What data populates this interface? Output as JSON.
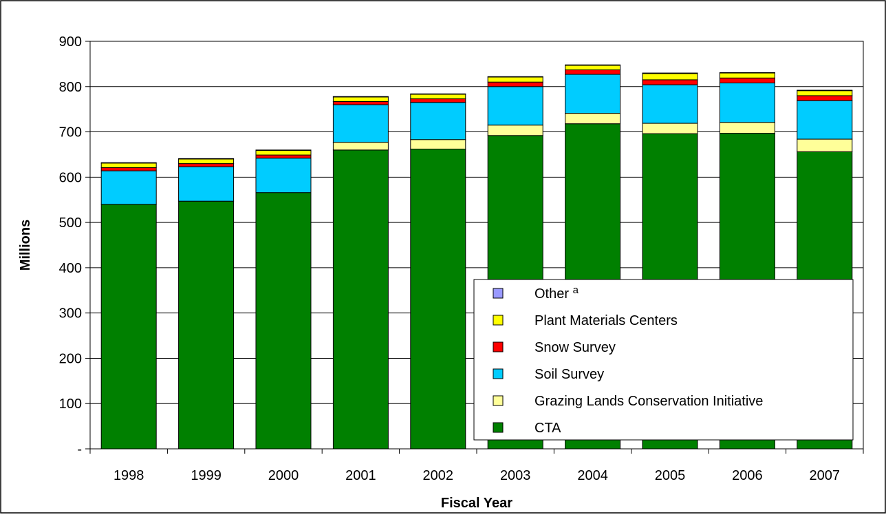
{
  "chart_data": {
    "type": "bar",
    "stacked": true,
    "title": "",
    "xlabel": "Fiscal Year",
    "ylabel": "Millions",
    "ylim": [
      0,
      900
    ],
    "yticks": [
      0,
      100,
      200,
      300,
      400,
      500,
      600,
      700,
      800,
      900
    ],
    "ytick_labels": [
      "-",
      "100",
      "200",
      "300",
      "400",
      "500",
      "600",
      "700",
      "800",
      "900"
    ],
    "grid": "horizontal",
    "legend_position": "bottom-right",
    "categories": [
      "1998",
      "1999",
      "2000",
      "2001",
      "2002",
      "2003",
      "2004",
      "2005",
      "2006",
      "2007"
    ],
    "series": [
      {
        "name": "CTA",
        "color": "#008000",
        "values": [
          540,
          547,
          566,
          660,
          662,
          692,
          718,
          696,
          697,
          656
        ]
      },
      {
        "name": "Grazing Lands Conservation Initiative",
        "color": "#FFFF99",
        "values": [
          0,
          0,
          0,
          17,
          21,
          23,
          23,
          23,
          24,
          28
        ]
      },
      {
        "name": "Soil Survey",
        "color": "#00CCFF",
        "values": [
          74,
          76,
          76,
          83,
          82,
          85,
          86,
          85,
          87,
          85
        ]
      },
      {
        "name": "Snow Survey",
        "color": "#FF0000",
        "values": [
          7,
          7,
          7,
          7,
          8,
          10,
          10,
          11,
          11,
          11
        ]
      },
      {
        "name": "Plant Materials Centers",
        "color": "#FFFF00",
        "values": [
          10,
          10,
          10,
          10,
          10,
          11,
          10,
          14,
          11,
          11
        ]
      },
      {
        "name": "Other a",
        "color": "#9999FF",
        "values": [
          1,
          1,
          1,
          1,
          1,
          1,
          1,
          1,
          1,
          1
        ]
      }
    ],
    "legend_order": [
      "Other a",
      "Plant Materials Centers",
      "Snow Survey",
      "Soil Survey",
      "Grazing Lands Conservation Initiative",
      "CTA"
    ]
  }
}
